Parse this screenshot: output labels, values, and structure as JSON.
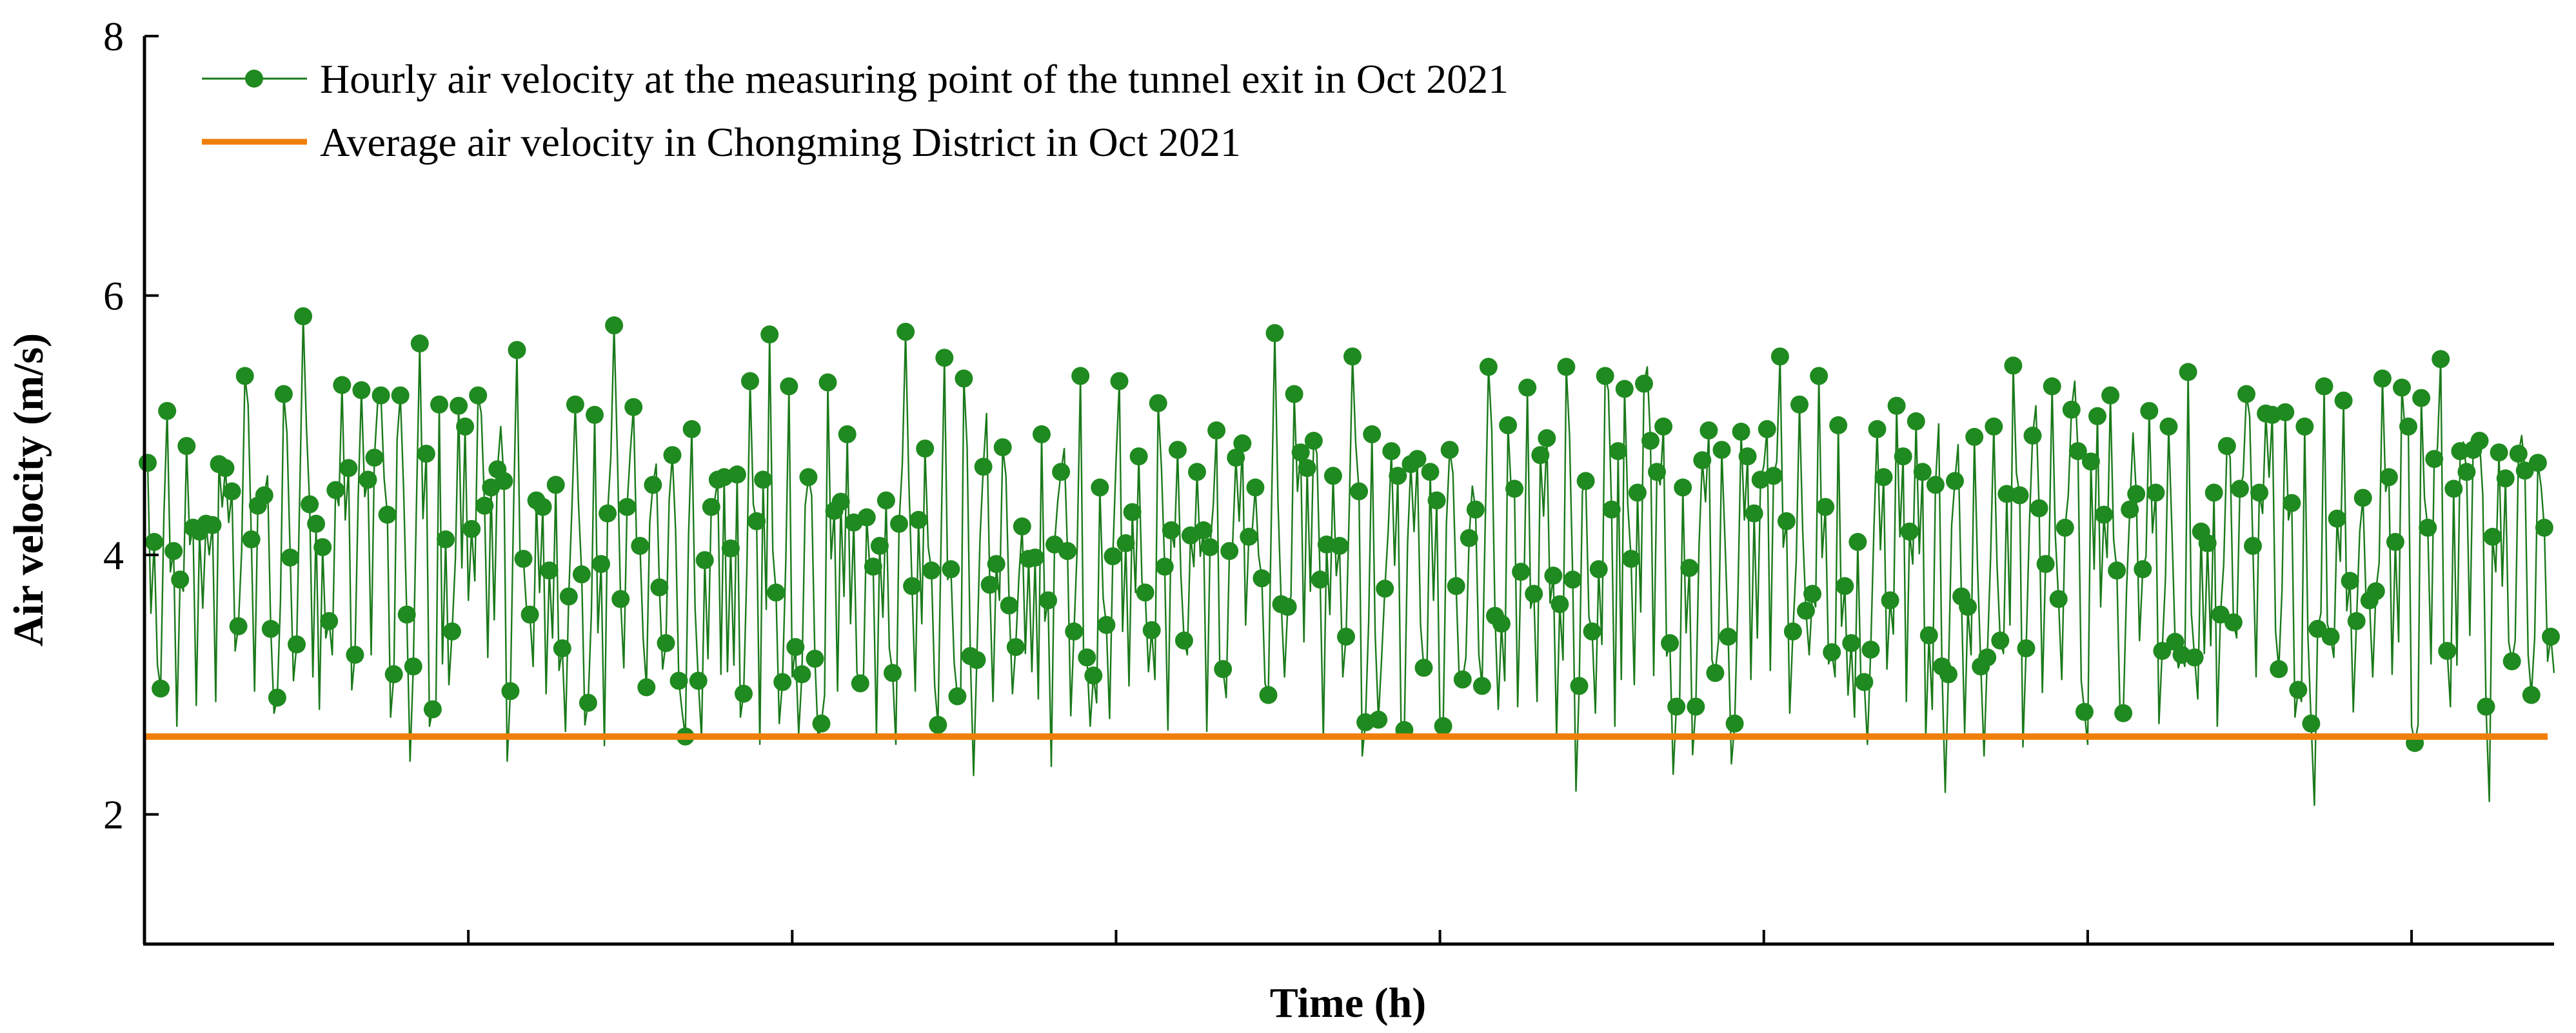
{
  "chart_data": {
    "type": "line",
    "title": "",
    "xlabel": "Time  (h)",
    "ylabel": "Air velocity  (m/s)",
    "xlim": [
      0,
      744
    ],
    "ylim": [
      1,
      8
    ],
    "yticks": [
      2,
      4,
      6,
      8
    ],
    "ytick_labels": [
      "2",
      "4",
      "6",
      "8"
    ],
    "xticks": [
      0,
      100,
      200,
      300,
      400,
      500,
      600,
      700
    ],
    "xtick_labels_shown": false,
    "grid": false,
    "legend_position": "top-left",
    "series": [
      {
        "name": "Hourly air velocity at the measuring point of the tunnel exit in Oct 2021",
        "kind": "line-with-markers",
        "color": "#1a7a1a",
        "x_start": 1,
        "x_step": 1,
        "count": 744,
        "min": 2.0,
        "max": 6.05,
        "mean": 3.85,
        "note": "744 hourly readings oscillating roughly between 2.0 and 6.0 m/s; every ~2nd hour marked with a filled circle"
      },
      {
        "name": "Average air velocity in Chongming District in Oct 2021",
        "kind": "horizontal-line",
        "color": "#f07f0a",
        "value": 2.6
      }
    ]
  },
  "colors": {
    "series_line": "#1a7a1a",
    "series_marker": "#1f8a1f",
    "average_line": "#f07f0a",
    "axis": "#000000"
  }
}
